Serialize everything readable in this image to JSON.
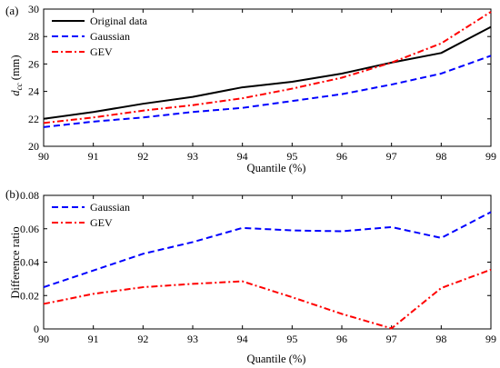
{
  "chart_data": [
    {
      "type": "line",
      "panel_label": "(a)",
      "xlabel": "Quantile (%)",
      "ylabel_main": "d",
      "ylabel_sub": "cc",
      "ylabel_unit": " (mm)",
      "xlim": [
        90,
        99
      ],
      "ylim": [
        20,
        30
      ],
      "xticks": [
        90,
        91,
        92,
        93,
        94,
        95,
        96,
        97,
        98,
        99
      ],
      "yticks": [
        20,
        22,
        24,
        26,
        28,
        30
      ],
      "grid": false,
      "legend_position": "top-left",
      "x": [
        90,
        91,
        92,
        93,
        94,
        95,
        96,
        97,
        98,
        99
      ],
      "series": [
        {
          "name": "Original data",
          "color": "#000000",
          "dash": "solid",
          "values": [
            22.0,
            22.5,
            23.1,
            23.6,
            24.3,
            24.7,
            25.3,
            26.1,
            26.8,
            28.7
          ]
        },
        {
          "name": "Gaussian",
          "color": "#0000ff",
          "dash": "dashed",
          "values": [
            21.4,
            21.8,
            22.1,
            22.5,
            22.8,
            23.3,
            23.8,
            24.5,
            25.3,
            26.6
          ]
        },
        {
          "name": "GEV",
          "color": "#ff0000",
          "dash": "dashdot",
          "values": [
            21.7,
            22.1,
            22.6,
            23.0,
            23.5,
            24.2,
            25.0,
            26.1,
            27.5,
            29.8
          ]
        }
      ]
    },
    {
      "type": "line",
      "panel_label": "(b)",
      "xlabel": "Quantile (%)",
      "ylabel": "Difference ratio",
      "xlim": [
        90,
        99
      ],
      "ylim": [
        0,
        0.08
      ],
      "xticks": [
        90,
        91,
        92,
        93,
        94,
        95,
        96,
        97,
        98,
        99
      ],
      "yticks": [
        0,
        0.02,
        0.04,
        0.06,
        0.08
      ],
      "ytick_labels": [
        "0",
        "0.02",
        "0.04",
        "0.06",
        "0.08"
      ],
      "grid": false,
      "legend_position": "top-left",
      "x": [
        90,
        91,
        92,
        93,
        94,
        95,
        96,
        97,
        98,
        99
      ],
      "series": [
        {
          "name": "Gaussian",
          "color": "#0000ff",
          "dash": "dashed",
          "values": [
            0.025,
            0.035,
            0.045,
            0.052,
            0.0605,
            0.059,
            0.0585,
            0.061,
            0.0545,
            0.07
          ]
        },
        {
          "name": "GEV",
          "color": "#ff0000",
          "dash": "dashdot",
          "values": [
            0.015,
            0.021,
            0.025,
            0.027,
            0.0285,
            0.019,
            0.009,
            0.0003,
            0.0245,
            0.0355
          ]
        }
      ]
    }
  ]
}
